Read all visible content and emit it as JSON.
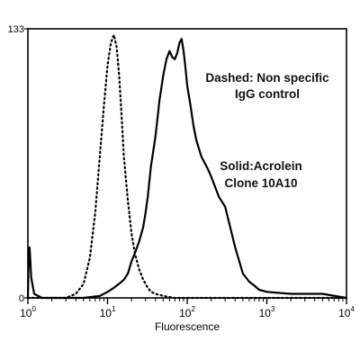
{
  "chart_data": {
    "type": "line",
    "title": "",
    "xlabel": "Fluorescence",
    "ylabel": "",
    "x_scale": "log",
    "xlim": [
      1,
      10000
    ],
    "ylim": [
      0,
      133
    ],
    "x_ticks": [
      {
        "base": "10",
        "exp": "0"
      },
      {
        "base": "10",
        "exp": "1"
      },
      {
        "base": "10",
        "exp": "2"
      },
      {
        "base": "10",
        "exp": "3"
      },
      {
        "base": "10",
        "exp": "4"
      }
    ],
    "y_ticks": [
      "0",
      "133"
    ],
    "grid": false,
    "annotations": [
      {
        "lines": [
          "Dashed: Non specific",
          "IgG control"
        ]
      },
      {
        "lines": [
          "Solid:Acrolein",
          "Clone 10A10"
        ]
      }
    ],
    "series": [
      {
        "style": "dashed",
        "x": [
          1,
          2,
          3,
          4,
          5,
          6,
          7,
          8,
          9,
          10,
          11,
          12,
          13,
          14,
          15,
          16,
          18,
          20,
          22,
          25,
          28,
          30,
          32,
          35,
          40,
          50,
          70,
          100,
          10000
        ],
        "y": [
          0,
          0,
          0,
          2,
          7,
          20,
          42,
          70,
          95,
          115,
          126,
          130,
          124,
          110,
          90,
          70,
          48,
          32,
          22,
          14,
          9,
          7,
          5,
          3,
          2,
          1,
          0,
          0,
          0
        ]
      },
      {
        "style": "solid",
        "x": [
          1,
          1.02,
          1.05,
          1.1,
          1.2,
          1.5,
          2,
          5,
          8,
          10,
          12,
          14,
          16,
          18,
          20,
          22,
          25,
          28,
          30,
          32,
          35,
          40,
          45,
          50,
          55,
          60,
          65,
          70,
          75,
          80,
          85,
          90,
          95,
          100,
          110,
          120,
          130,
          150,
          180,
          200,
          250,
          300,
          400,
          500,
          600,
          700,
          800,
          1000,
          2000,
          5000,
          10000
        ],
        "y": [
          0,
          18,
          25,
          10,
          2,
          0,
          0,
          0,
          1,
          3,
          5,
          7,
          9,
          12,
          18,
          22,
          28,
          35,
          42,
          50,
          65,
          80,
          98,
          110,
          118,
          122,
          119,
          118,
          121,
          126,
          128,
          122,
          114,
          105,
          95,
          85,
          78,
          70,
          64,
          60,
          50,
          45,
          25,
          12,
          8,
          6,
          4,
          3,
          2,
          2,
          0
        ]
      }
    ]
  }
}
